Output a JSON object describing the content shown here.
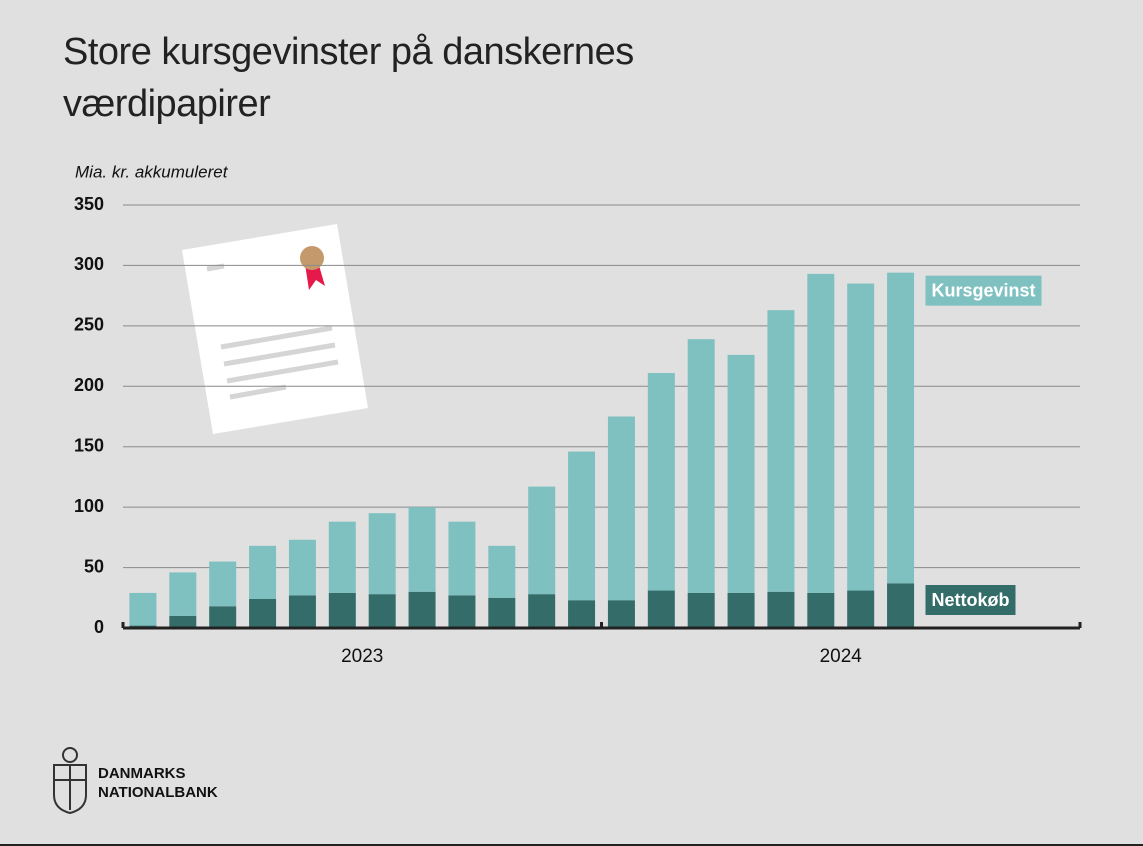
{
  "chart_data": {
    "type": "stacked-bar",
    "title": "Store kursgevinster på danskernes værdipapirer",
    "y_label": "Mia. kr. akkumuleret",
    "categories": [
      null,
      null,
      null,
      null,
      null,
      null,
      null,
      null,
      null,
      null,
      null,
      null,
      null,
      null,
      null,
      null,
      null,
      null,
      null,
      null,
      null,
      null,
      null,
      null
    ],
    "groups": [
      "2023",
      "2024"
    ],
    "series": [
      {
        "name": "Nettokøb",
        "color": "#336c69",
        "values": [
          2,
          10,
          18,
          24,
          27,
          29,
          28,
          30,
          27,
          25,
          28,
          23,
          23,
          31,
          29,
          29,
          30,
          29,
          31,
          37,
          null,
          null,
          null,
          null
        ]
      },
      {
        "name": "Kursgevinst",
        "color": "#7fc1c0",
        "values": [
          27,
          36,
          37,
          44,
          46,
          59,
          67,
          70,
          61,
          43,
          89,
          123,
          152,
          180,
          210,
          197,
          233,
          264,
          254,
          257,
          null,
          null,
          null,
          null
        ]
      }
    ],
    "ylim": [
      0,
      350
    ],
    "yticks": [
      0,
      50,
      100,
      150,
      200,
      250,
      300,
      350
    ],
    "grid": true
  },
  "logo": [
    "DANMARKS",
    "NATIONALBANK"
  ]
}
